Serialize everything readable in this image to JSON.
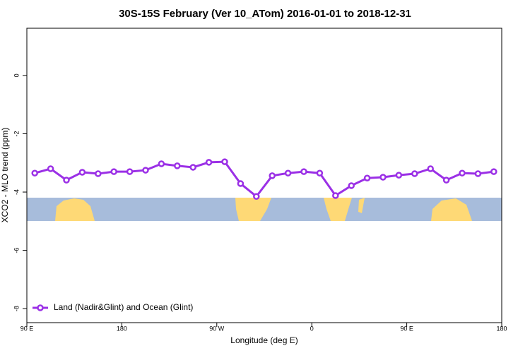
{
  "chart_data": {
    "type": "line",
    "title": "30S-15S February (Ver 10_ATom)   2016-01-01 to 2018-12-31",
    "xlabel": "Longitude (deg E)",
    "ylabel": "XCO2 - MLO trend (ppm)",
    "x": [
      97.5,
      112.5,
      127.5,
      142.5,
      157.5,
      172.5,
      187.5,
      202.5,
      217.5,
      232.5,
      247.5,
      262.5,
      277.5,
      292.5,
      307.5,
      322.5,
      337.5,
      352.5,
      367.5,
      382.5,
      397.5,
      412.5,
      427.5,
      442.5,
      457.5,
      472.5,
      487.5,
      502.5,
      517.5,
      532.5
    ],
    "series": [
      {
        "name": "Land (Nadir&Glint) and Ocean (Glint)",
        "color": "#9b30e6",
        "values": [
          -3.35,
          -3.2,
          -3.59,
          -3.32,
          -3.37,
          -3.3,
          -3.3,
          -3.25,
          -3.03,
          -3.1,
          -3.15,
          -2.98,
          -2.96,
          -3.71,
          -4.15,
          -3.44,
          -3.35,
          -3.3,
          -3.35,
          -4.12,
          -3.78,
          -3.52,
          -3.49,
          -3.42,
          -3.37,
          -3.2,
          -3.59,
          -3.35,
          -3.37,
          -3.3
        ]
      }
    ],
    "xlim": [
      90,
      540
    ],
    "xticks": [
      {
        "value": 90,
        "label": "90 E"
      },
      180,
      {
        "value": 270,
        "label": "90 W"
      },
      0,
      {
        "value": 450,
        "label": "90 E"
      },
      {
        "value": 540,
        "label": "180"
      }
    ],
    "ylim": [
      -8.48,
      1.62
    ],
    "yticks": [
      0,
      -2,
      -4,
      -6,
      -8
    ],
    "legend": "bottom-left"
  }
}
